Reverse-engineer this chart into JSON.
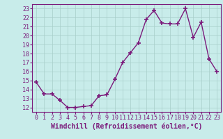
{
  "x": [
    0,
    1,
    2,
    3,
    4,
    5,
    6,
    7,
    8,
    9,
    10,
    11,
    12,
    13,
    14,
    15,
    16,
    17,
    18,
    19,
    20,
    21,
    22,
    23
  ],
  "y": [
    14.8,
    13.5,
    13.5,
    12.8,
    12.0,
    12.0,
    12.1,
    12.2,
    13.3,
    13.4,
    15.1,
    17.0,
    18.1,
    19.2,
    21.8,
    22.8,
    21.4,
    21.3,
    21.3,
    23.0,
    19.8,
    21.5,
    17.4,
    16.0
  ],
  "line_color": "#7b1a7b",
  "marker": "+",
  "markersize": 4,
  "markeredgewidth": 1.2,
  "linewidth": 1.0,
  "bg_color": "#c8ecea",
  "grid_color": "#a8ceca",
  "xlabel": "Windchill (Refroidissement éolien,°C)",
  "ylim": [
    11.5,
    23.5
  ],
  "xlim": [
    -0.5,
    23.5
  ],
  "yticks": [
    12,
    13,
    14,
    15,
    16,
    17,
    18,
    19,
    20,
    21,
    22,
    23
  ],
  "xticks": [
    0,
    1,
    2,
    3,
    4,
    5,
    6,
    7,
    8,
    9,
    10,
    11,
    12,
    13,
    14,
    15,
    16,
    17,
    18,
    19,
    20,
    21,
    22,
    23
  ],
  "tick_fontsize": 6,
  "xlabel_fontsize": 7
}
